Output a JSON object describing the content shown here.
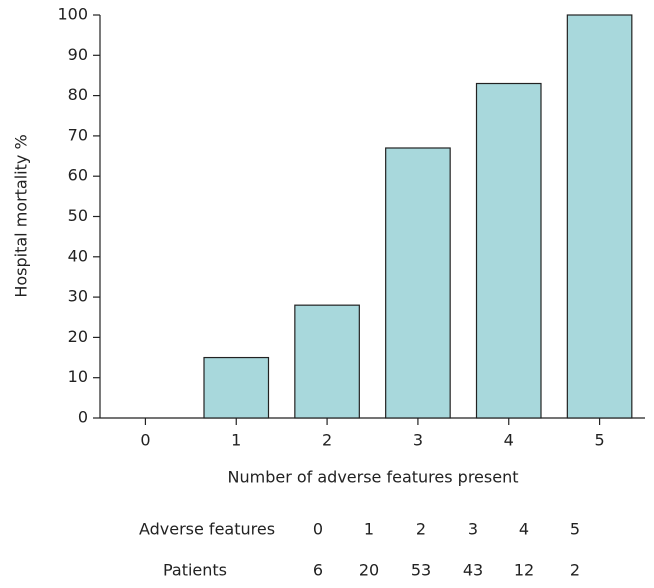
{
  "chart_data": {
    "type": "bar",
    "ylabel": "Hospital mortality %",
    "xlabel": "Number of adverse features present",
    "categories": [
      "0",
      "1",
      "2",
      "3",
      "4",
      "5"
    ],
    "values": [
      0,
      15,
      28,
      67,
      83,
      100
    ],
    "color": "#a8d8dc",
    "ylim": [
      0,
      100
    ],
    "yticks": [
      0,
      10,
      20,
      30,
      40,
      50,
      60,
      70,
      80,
      90,
      100
    ],
    "grid": false
  },
  "table": {
    "rows": [
      [
        "Adverse features",
        0,
        1,
        2,
        3,
        4,
        5
      ],
      [
        "Patients",
        6,
        20,
        53,
        43,
        12,
        2
      ]
    ]
  }
}
